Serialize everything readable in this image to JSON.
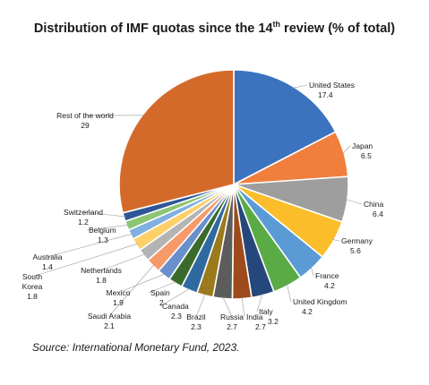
{
  "title": {
    "pre": "Distribution of IMF quotas since the 14",
    "sup": "th",
    "post": " review (% of total)"
  },
  "source": "Source: International Monetary Fund, 2023.",
  "chart_data": {
    "type": "pie",
    "unit": "% of total",
    "slices": [
      {
        "label": "United States",
        "value": 17.4,
        "color": "#3c73be"
      },
      {
        "label": "Japan",
        "value": 6.5,
        "color": "#f07f3d"
      },
      {
        "label": "China",
        "value": 6.4,
        "color": "#9e9e9e"
      },
      {
        "label": "Germany",
        "value": 5.6,
        "color": "#fbbe2a"
      },
      {
        "label": "France",
        "value": 4.2,
        "color": "#5b9bd5"
      },
      {
        "label": "United Kingdom",
        "value": 4.2,
        "color": "#5aab46"
      },
      {
        "label": "Italy",
        "value": 3.2,
        "color": "#26477b"
      },
      {
        "label": "India",
        "value": 2.7,
        "color": "#9d4b1d"
      },
      {
        "label": "Russia",
        "value": 2.7,
        "color": "#5c5c5c"
      },
      {
        "label": "Brazil",
        "value": 2.3,
        "color": "#9b7a1e"
      },
      {
        "label": "Canada",
        "value": 2.3,
        "color": "#2e6aa0"
      },
      {
        "label": "Spain",
        "value": 2.0,
        "color": "#3a6b2c"
      },
      {
        "label": "Mexico",
        "value": 1.9,
        "color": "#6a8fcd"
      },
      {
        "label": "Saudi Arabia",
        "value": 2.1,
        "color": "#f79a6a"
      },
      {
        "label": "Netherlands",
        "value": 1.8,
        "color": "#b4b4b4"
      },
      {
        "label": "South Korea",
        "value": 1.8,
        "color": "#fdd06a"
      },
      {
        "label": "Australia",
        "value": 1.4,
        "color": "#7fb0df"
      },
      {
        "label": "Belgium",
        "value": 1.3,
        "color": "#8cc473"
      },
      {
        "label": "Switzerland",
        "value": 1.2,
        "color": "#2f5597"
      },
      {
        "label": "Rest of the world",
        "value": 29,
        "color": "#d46a2a"
      }
    ]
  }
}
